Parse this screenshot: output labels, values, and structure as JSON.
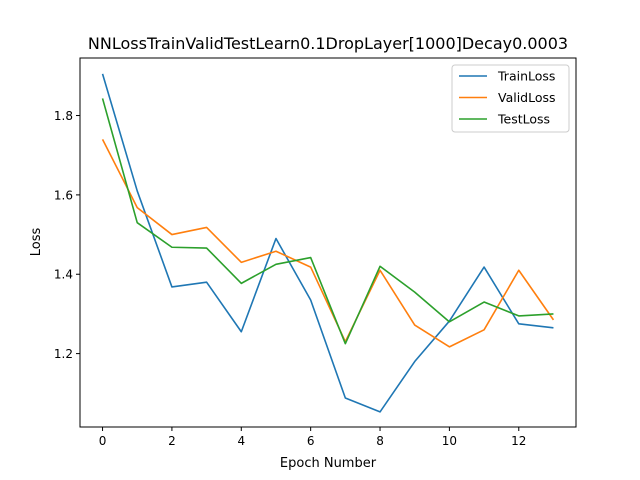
{
  "chart_data": {
    "type": "line",
    "title": "NNLossTrainValidTestLearn0.1DropLayer[1000]Decay0.0003",
    "xlabel": "Epoch Number",
    "ylabel": "Loss",
    "xlim": [
      -0.65,
      13.65
    ],
    "ylim": [
      1.015,
      1.945
    ],
    "x_ticks": [
      0,
      2,
      4,
      6,
      8,
      10,
      12
    ],
    "y_ticks": [
      1.2,
      1.4,
      1.6,
      1.8
    ],
    "grid": false,
    "legend_position": "top-right",
    "x": [
      0,
      1,
      2,
      3,
      4,
      5,
      6,
      7,
      8,
      9,
      10,
      11,
      12,
      13
    ],
    "series": [
      {
        "name": "TrainLoss",
        "color": "#1f77b4",
        "values": [
          1.905,
          1.61,
          1.368,
          1.38,
          1.255,
          1.49,
          1.335,
          1.088,
          1.053,
          1.18,
          1.282,
          1.418,
          1.275,
          1.265
        ]
      },
      {
        "name": "ValidLoss",
        "color": "#ff7f0e",
        "values": [
          1.74,
          1.568,
          1.5,
          1.518,
          1.43,
          1.458,
          1.418,
          1.23,
          1.41,
          1.272,
          1.217,
          1.26,
          1.41,
          1.285
        ]
      },
      {
        "name": "TestLoss",
        "color": "#2ca02c",
        "values": [
          1.843,
          1.53,
          1.468,
          1.466,
          1.377,
          1.425,
          1.442,
          1.225,
          1.42,
          1.355,
          1.28,
          1.33,
          1.295,
          1.3
        ]
      }
    ]
  }
}
